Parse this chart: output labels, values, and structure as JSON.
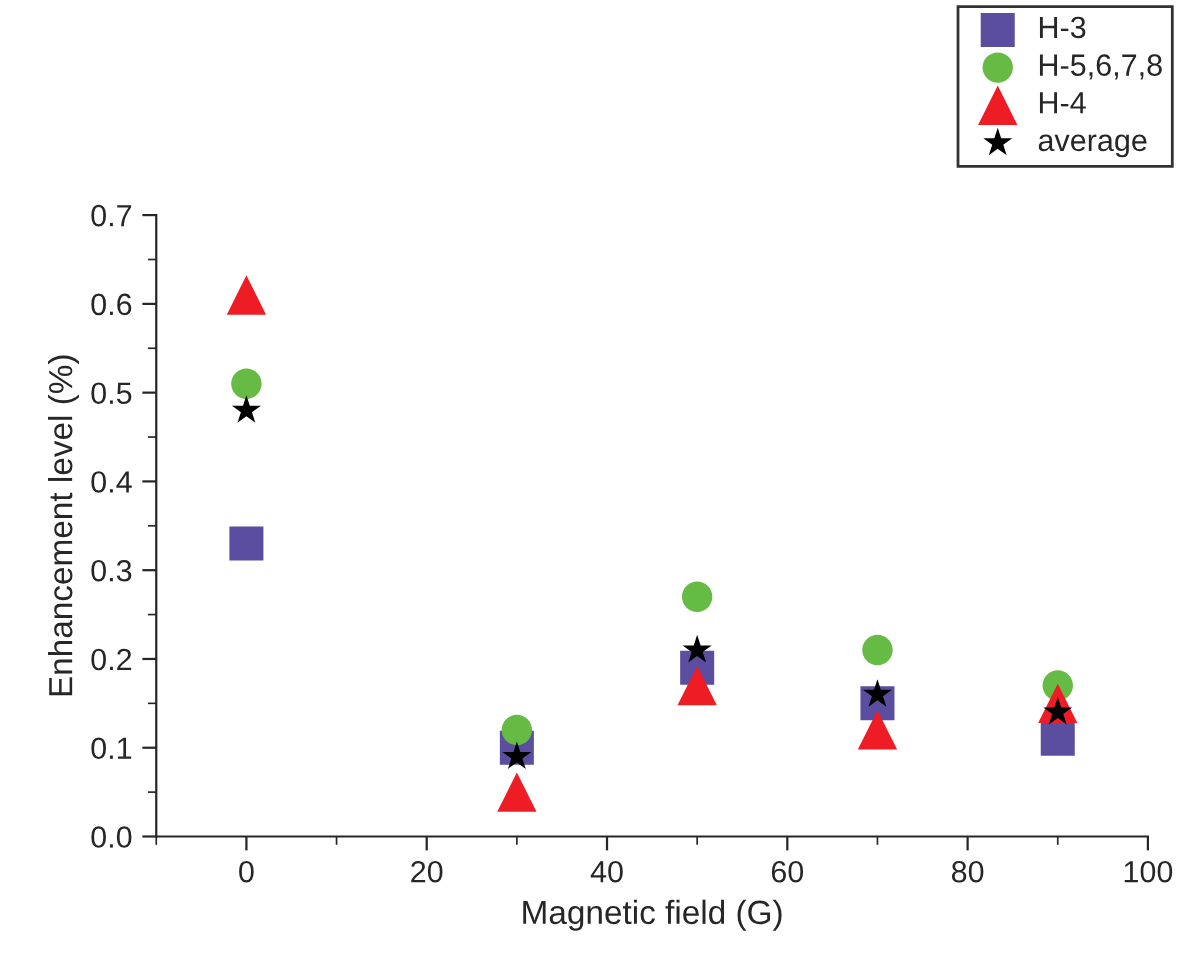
{
  "chart_data": {
    "type": "scatter",
    "xlabel": "Magnetic field (G)",
    "ylabel": "Enhancement level (%)",
    "xlim": [
      -10,
      100
    ],
    "xticks": [
      0,
      20,
      40,
      60,
      80,
      100
    ],
    "ylim": [
      0.0,
      0.7
    ],
    "yticks": [
      {
        "value": 0.0,
        "label": "0.0"
      },
      0.1,
      0.2,
      0.3,
      0.4,
      0.5,
      0.6,
      0.7
    ],
    "x": [
      0,
      30,
      50,
      70,
      90
    ],
    "legend": "top right",
    "grid": false,
    "series": [
      {
        "name": "H-3",
        "color": "#5b4ea0",
        "marker": "square",
        "values": [
          0.33,
          0.1,
          0.19,
          0.15,
          0.11
        ]
      },
      {
        "name": "H-5,6,7,8",
        "color": "#66bb44",
        "marker": "circle",
        "values": [
          0.51,
          0.12,
          0.27,
          0.21,
          0.17
        ]
      },
      {
        "name": "H-4",
        "color": "#ee1c24",
        "marker": "triangle",
        "values": [
          0.61,
          0.05,
          0.17,
          0.12,
          0.15
        ]
      },
      {
        "name": "average",
        "color": "#000000",
        "marker": "star",
        "values": [
          0.48,
          0.09,
          0.21,
          0.16,
          0.14
        ]
      }
    ]
  }
}
